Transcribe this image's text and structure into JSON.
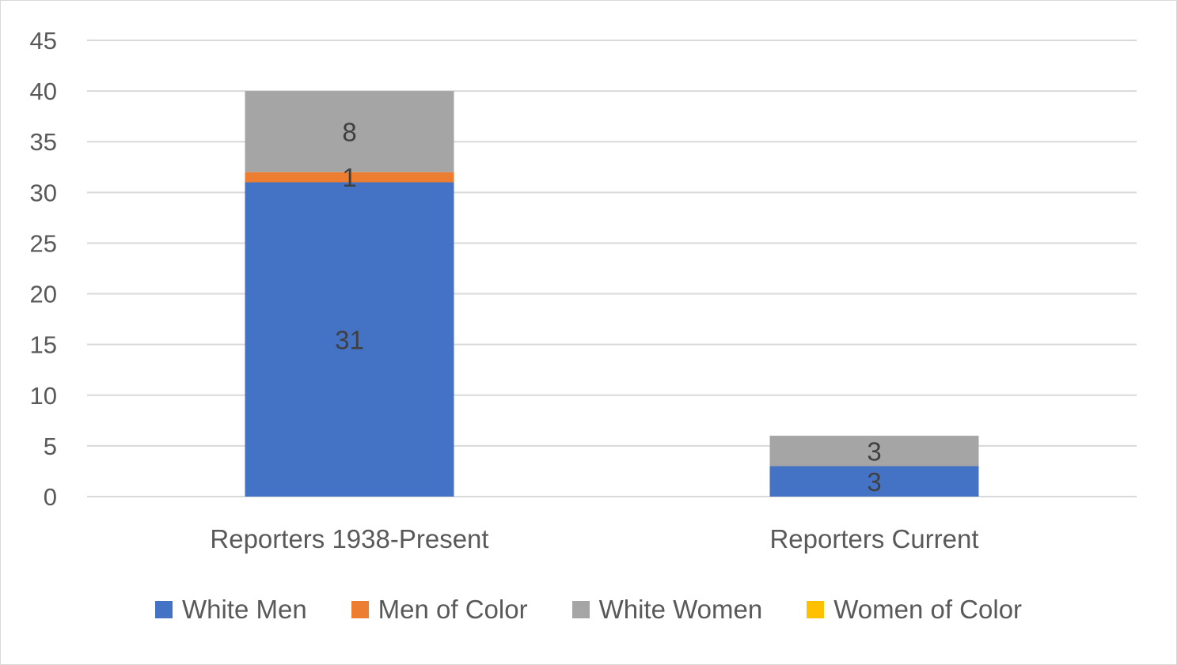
{
  "chart_data": {
    "type": "bar",
    "stacked": true,
    "categories": [
      "Reporters 1938-Present",
      "Reporters Current"
    ],
    "series": [
      {
        "name": "White Men",
        "color": "#4472C4",
        "values": [
          31,
          3
        ]
      },
      {
        "name": "Men of Color",
        "color": "#ED7D31",
        "values": [
          1,
          0
        ]
      },
      {
        "name": "White Women",
        "color": "#A5A5A5",
        "values": [
          8,
          3
        ]
      },
      {
        "name": "Women of Color",
        "color": "#FFC000",
        "values": [
          0,
          0
        ]
      }
    ],
    "title": "",
    "xlabel": "",
    "ylabel": "",
    "ylim": [
      0,
      45
    ],
    "yticks": [
      0,
      5,
      10,
      15,
      20,
      25,
      30,
      35,
      40,
      45
    ],
    "grid": true,
    "legend_position": "bottom"
  }
}
